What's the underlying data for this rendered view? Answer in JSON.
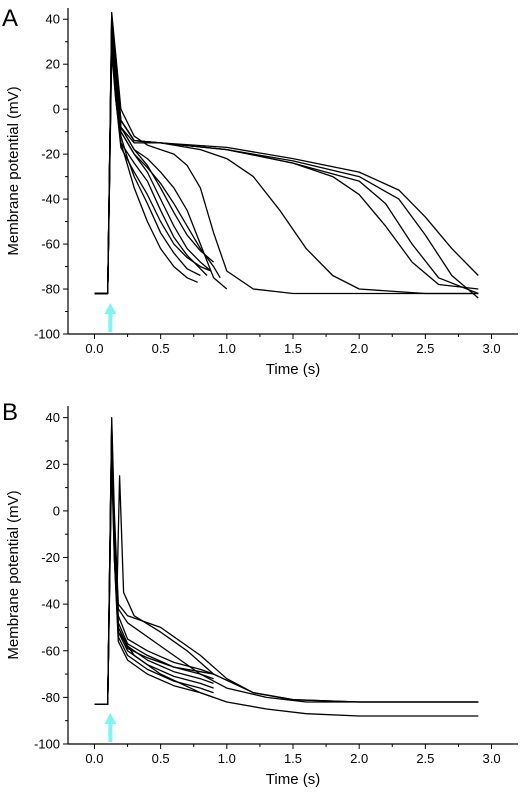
{
  "figure": {
    "stimulus_color": "#7ff5f2",
    "trace_color": "#000000"
  },
  "chart_data": [
    {
      "type": "line",
      "panel_label": "A",
      "xlabel": "Time (s)",
      "ylabel": "Membrane potential (mV)",
      "xlim": [
        -0.2,
        3.2
      ],
      "ylim": [
        -100,
        45
      ],
      "x_ticks": [
        0.0,
        0.5,
        1.0,
        1.5,
        2.0,
        2.5,
        3.0
      ],
      "x_tick_labels": [
        "0.0",
        "0.5",
        "1.0",
        "1.5",
        "2.0",
        "2.5",
        "3.0"
      ],
      "y_ticks": [
        -100,
        -80,
        -60,
        -40,
        -20,
        0,
        20,
        40
      ],
      "y_tick_labels": [
        "-100",
        "-80",
        "-60",
        "-40",
        "-20",
        "0",
        "20",
        "40"
      ],
      "stimulus_arrow_x": 0.12,
      "series": [
        {
          "x": [
            0.0,
            0.1,
            0.13,
            0.16,
            0.2,
            0.25,
            0.3,
            0.4,
            0.5,
            0.6,
            0.7,
            0.78
          ],
          "y": [
            -82,
            -82,
            30,
            5,
            -15,
            -25,
            -35,
            -50,
            -62,
            -70,
            -75,
            -77
          ]
        },
        {
          "x": [
            0.0,
            0.1,
            0.13,
            0.16,
            0.2,
            0.25,
            0.3,
            0.4,
            0.5,
            0.6,
            0.7,
            0.8
          ],
          "y": [
            -82,
            -82,
            36,
            10,
            -12,
            -22,
            -30,
            -42,
            -55,
            -64,
            -71,
            -74
          ]
        },
        {
          "x": [
            0.0,
            0.1,
            0.13,
            0.16,
            0.2,
            0.3,
            0.4,
            0.5,
            0.6,
            0.7,
            0.8,
            0.85
          ],
          "y": [
            -82,
            -82,
            28,
            8,
            -15,
            -24,
            -32,
            -45,
            -57,
            -65,
            -71,
            -74
          ]
        },
        {
          "x": [
            0.0,
            0.1,
            0.13,
            0.16,
            0.2,
            0.3,
            0.4,
            0.5,
            0.6,
            0.7,
            0.8,
            0.88
          ],
          "y": [
            -82,
            -82,
            32,
            12,
            -10,
            -20,
            -28,
            -40,
            -52,
            -62,
            -68,
            -72
          ]
        },
        {
          "x": [
            0.0,
            0.1,
            0.13,
            0.16,
            0.2,
            0.3,
            0.4,
            0.5,
            0.6,
            0.7,
            0.8,
            0.88
          ],
          "y": [
            -82,
            -82,
            25,
            5,
            -17,
            -28,
            -38,
            -50,
            -60,
            -66,
            -70,
            -72
          ]
        },
        {
          "x": [
            0.0,
            0.1,
            0.13,
            0.16,
            0.2,
            0.3,
            0.4,
            0.5,
            0.6,
            0.7,
            0.8,
            0.9
          ],
          "y": [
            -82,
            -82,
            38,
            15,
            -8,
            -18,
            -25,
            -35,
            -46,
            -56,
            -63,
            -68
          ]
        },
        {
          "x": [
            0.0,
            0.1,
            0.13,
            0.16,
            0.2,
            0.3,
            0.4,
            0.5,
            0.6,
            0.7,
            0.8,
            0.9,
            0.95
          ],
          "y": [
            -82,
            -82,
            34,
            14,
            -10,
            -20,
            -26,
            -33,
            -42,
            -52,
            -62,
            -70,
            -75
          ]
        },
        {
          "x": [
            0.0,
            0.1,
            0.13,
            0.16,
            0.2,
            0.3,
            0.4,
            0.5,
            0.6,
            0.7,
            0.8,
            0.9,
            1.0
          ],
          "y": [
            -82,
            -82,
            40,
            20,
            -8,
            -18,
            -22,
            -28,
            -35,
            -45,
            -60,
            -75,
            -80
          ]
        },
        {
          "x": [
            0.0,
            0.1,
            0.13,
            0.16,
            0.2,
            0.3,
            0.4,
            0.5,
            0.6,
            0.7,
            0.8,
            0.9,
            1.0,
            1.2,
            1.5,
            2.0,
            2.5,
            2.9
          ],
          "y": [
            -82,
            -82,
            43,
            25,
            0,
            -12,
            -16,
            -18,
            -20,
            -25,
            -35,
            -55,
            -72,
            -80,
            -82,
            -82,
            -82,
            -82
          ]
        },
        {
          "x": [
            0.0,
            0.1,
            0.13,
            0.16,
            0.2,
            0.3,
            0.5,
            0.8,
            1.0,
            1.2,
            1.4,
            1.6,
            1.8,
            2.0,
            2.5,
            2.9
          ],
          "y": [
            -82,
            -82,
            42,
            22,
            -8,
            -15,
            -15,
            -18,
            -22,
            -30,
            -45,
            -62,
            -74,
            -80,
            -82,
            -82
          ]
        },
        {
          "x": [
            0.0,
            0.1,
            0.13,
            0.16,
            0.2,
            0.3,
            0.5,
            1.0,
            1.5,
            1.8,
            2.0,
            2.2,
            2.4,
            2.6,
            2.9
          ],
          "y": [
            -82,
            -82,
            40,
            20,
            -5,
            -14,
            -15,
            -18,
            -24,
            -30,
            -38,
            -52,
            -68,
            -78,
            -80
          ]
        },
        {
          "x": [
            0.0,
            0.1,
            0.13,
            0.16,
            0.2,
            0.3,
            0.5,
            1.0,
            1.5,
            2.0,
            2.2,
            2.4,
            2.6,
            2.9
          ],
          "y": [
            -82,
            -82,
            38,
            18,
            -5,
            -14,
            -15,
            -18,
            -24,
            -32,
            -42,
            -60,
            -75,
            -82
          ]
        },
        {
          "x": [
            0.0,
            0.1,
            0.13,
            0.16,
            0.2,
            0.3,
            0.5,
            1.0,
            1.5,
            2.0,
            2.3,
            2.5,
            2.7,
            2.9
          ],
          "y": [
            -82,
            -82,
            36,
            16,
            -5,
            -14,
            -15,
            -17,
            -22,
            -28,
            -36,
            -48,
            -62,
            -74
          ]
        },
        {
          "x": [
            0.0,
            0.1,
            0.13,
            0.16,
            0.2,
            0.3,
            0.5,
            1.0,
            1.5,
            2.0,
            2.3,
            2.5,
            2.7,
            2.9
          ],
          "y": [
            -82,
            -82,
            34,
            14,
            -5,
            -14,
            -15,
            -18,
            -23,
            -30,
            -40,
            -56,
            -74,
            -84
          ]
        }
      ]
    },
    {
      "type": "line",
      "panel_label": "B",
      "xlabel": "Time (s)",
      "ylabel": "Membrane potential (mV)",
      "xlim": [
        -0.2,
        3.2
      ],
      "ylim": [
        -100,
        45
      ],
      "x_ticks": [
        0.0,
        0.5,
        1.0,
        1.5,
        2.0,
        2.5,
        3.0
      ],
      "x_tick_labels": [
        "0.0",
        "0.5",
        "1.0",
        "1.5",
        "2.0",
        "2.5",
        "3.0"
      ],
      "y_ticks": [
        -100,
        -80,
        -60,
        -40,
        -20,
        0,
        20,
        40
      ],
      "y_tick_labels": [
        "-100",
        "-80",
        "-60",
        "-40",
        "-20",
        "0",
        "20",
        "40"
      ],
      "stimulus_arrow_x": 0.12,
      "series": [
        {
          "x": [
            0.0,
            0.1,
            0.13,
            0.15,
            0.18,
            0.25,
            0.4,
            0.6,
            0.8,
            0.9
          ],
          "y": [
            -83,
            -83,
            38,
            -10,
            -45,
            -55,
            -60,
            -65,
            -68,
            -70
          ]
        },
        {
          "x": [
            0.0,
            0.1,
            0.13,
            0.15,
            0.18,
            0.25,
            0.4,
            0.6,
            0.8,
            0.9
          ],
          "y": [
            -83,
            -83,
            30,
            -15,
            -48,
            -57,
            -62,
            -67,
            -70,
            -72
          ]
        },
        {
          "x": [
            0.0,
            0.1,
            0.13,
            0.15,
            0.18,
            0.25,
            0.4,
            0.6,
            0.8,
            0.9
          ],
          "y": [
            -83,
            -83,
            25,
            -12,
            -50,
            -58,
            -64,
            -69,
            -72,
            -74
          ]
        },
        {
          "x": [
            0.0,
            0.1,
            0.13,
            0.15,
            0.18,
            0.25,
            0.4,
            0.6,
            0.8,
            0.9
          ],
          "y": [
            -83,
            -83,
            35,
            -18,
            -52,
            -60,
            -66,
            -71,
            -74,
            -76
          ]
        },
        {
          "x": [
            0.0,
            0.1,
            0.13,
            0.15,
            0.18,
            0.25,
            0.4,
            0.6,
            0.8,
            0.9
          ],
          "y": [
            -83,
            -83,
            20,
            -20,
            -54,
            -62,
            -68,
            -73,
            -76,
            -78
          ]
        },
        {
          "x": [
            0.0,
            0.1,
            0.13,
            0.15,
            0.18,
            0.25,
            0.4,
            0.6,
            0.8,
            0.9
          ],
          "y": [
            -83,
            -83,
            30,
            -20,
            -56,
            -64,
            -70,
            -75,
            -78,
            -80
          ]
        },
        {
          "x": [
            0.0,
            0.1,
            0.13,
            0.15,
            0.18,
            0.25,
            0.4,
            0.6,
            0.8,
            0.9
          ],
          "y": [
            -83,
            -83,
            36,
            -5,
            -50,
            -59,
            -63,
            -67,
            -69,
            -70
          ]
        },
        {
          "x": [
            0.0,
            0.1,
            0.13,
            0.15,
            0.18,
            0.25,
            0.5,
            0.8,
            1.0,
            1.2,
            1.5,
            2.0,
            2.5,
            2.9
          ],
          "y": [
            -83,
            -83,
            40,
            0,
            -40,
            -45,
            -50,
            -62,
            -72,
            -78,
            -81,
            -82,
            -82,
            -82
          ]
        },
        {
          "x": [
            0.0,
            0.1,
            0.13,
            0.15,
            0.17,
            0.19,
            0.22,
            0.3,
            0.5,
            0.7,
            0.9,
            1.2,
            1.5,
            2.0,
            2.5,
            2.9
          ],
          "y": [
            -83,
            -83,
            37,
            -10,
            -35,
            15,
            -35,
            -45,
            -52,
            -60,
            -70,
            -78,
            -81,
            -82,
            -82,
            -82
          ]
        },
        {
          "x": [
            0.0,
            0.1,
            0.13,
            0.15,
            0.18,
            0.25,
            0.5,
            0.8,
            1.0,
            1.3,
            1.6,
            2.0,
            2.5,
            2.9
          ],
          "y": [
            -83,
            -83,
            32,
            -5,
            -42,
            -48,
            -58,
            -70,
            -76,
            -80,
            -82,
            -82,
            -82,
            -82
          ]
        },
        {
          "x": [
            0.0,
            0.1,
            0.13,
            0.15,
            0.18,
            0.3,
            0.5,
            0.8,
            1.0,
            1.3,
            1.6,
            2.0,
            2.5,
            2.9
          ],
          "y": [
            -83,
            -83,
            28,
            -15,
            -52,
            -62,
            -70,
            -78,
            -82,
            -85,
            -87,
            -88,
            -88,
            -88
          ]
        }
      ]
    }
  ]
}
